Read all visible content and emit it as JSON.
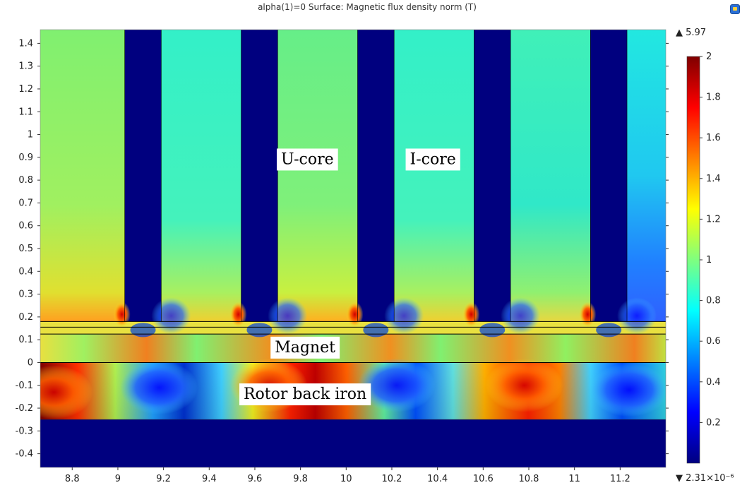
{
  "header": {
    "title": "alpha(1)=0   Surface: Magnetic flux density norm (T)"
  },
  "chart_data": {
    "type": "heatmap",
    "title": "alpha(1)=0   Surface: Magnetic flux density norm (T)",
    "xlabel": "",
    "ylabel": "",
    "xlim": [
      8.66,
      11.4
    ],
    "ylim": [
      -0.46,
      1.46
    ],
    "xticks": [
      8.8,
      9,
      9.2,
      9.4,
      9.6,
      9.8,
      10,
      10.2,
      10.4,
      10.6,
      10.8,
      11,
      11.2
    ],
    "yticks": [
      1.4,
      1.3,
      1.2,
      1.1,
      1,
      0.9,
      0.8,
      0.7,
      0.6,
      0.5,
      0.4,
      0.3,
      0.2,
      0.1,
      0,
      -0.1,
      -0.2,
      -0.3,
      -0.4
    ],
    "xtick_labels": [
      "8.8",
      "9",
      "9.2",
      "9.4",
      "9.6",
      "9.8",
      "10",
      "10.2",
      "10.4",
      "10.6",
      "10.8",
      "11",
      "11.2"
    ],
    "ytick_labels": [
      "1.4",
      "1.3",
      "1.2",
      "1.1",
      "1",
      "0.9",
      "0.8",
      "0.7",
      "0.6",
      "0.5",
      "0.4",
      "0.3",
      "0.2",
      "0.1",
      "0",
      "-0.1",
      "-0.2",
      "-0.3",
      "-0.4"
    ],
    "colorbar": {
      "min": 0,
      "max": 2,
      "ticks": [
        2,
        1.8,
        1.6,
        1.4,
        1.2,
        1,
        0.8,
        0.6,
        0.4,
        0.2
      ],
      "tick_labels": [
        "2",
        "1.8",
        "1.6",
        "1.4",
        "1.2",
        "1",
        "0.8",
        "0.6",
        "0.4",
        "0.2"
      ],
      "max_label": "▲ 5.97",
      "min_label": "▼ 2.31×10⁻⁶",
      "colormap": "rainbow (dark blue → cyan → green → yellow → red → dark red)"
    },
    "core_x_ranges": [
      [
        8.66,
        9.03
      ],
      [
        9.19,
        9.54
      ],
      [
        9.7,
        10.05
      ],
      [
        10.21,
        10.56
      ],
      [
        10.72,
        11.07
      ],
      [
        11.23,
        11.4
      ]
    ],
    "gap_x_ranges": [
      [
        9.03,
        9.19
      ],
      [
        9.54,
        9.7
      ],
      [
        10.05,
        10.21
      ],
      [
        10.56,
        10.72
      ],
      [
        11.07,
        11.23
      ]
    ],
    "layer_y": {
      "core_bottom": 0.18,
      "line_1": 0.155,
      "magnet_top": 0.125,
      "magnet_bottom": 0,
      "back_iron_bottom": -0.25
    },
    "field_values": {
      "u_core": 0.95,
      "i_core": 0.8,
      "slot_gap": 0.02,
      "magnet": 0.9,
      "back_iron_high": 1.9,
      "back_iron_low": 0.3,
      "below_rotor": 0.0
    },
    "annotations": [
      {
        "text": "U-core",
        "x": 9.83,
        "y": 0.895
      },
      {
        "text": "I-core",
        "x": 10.38,
        "y": 0.895
      },
      {
        "text": "Magnet",
        "x": 9.82,
        "y": 0.07
      },
      {
        "text": "Rotor back iron",
        "x": 9.82,
        "y": -0.135
      }
    ]
  }
}
